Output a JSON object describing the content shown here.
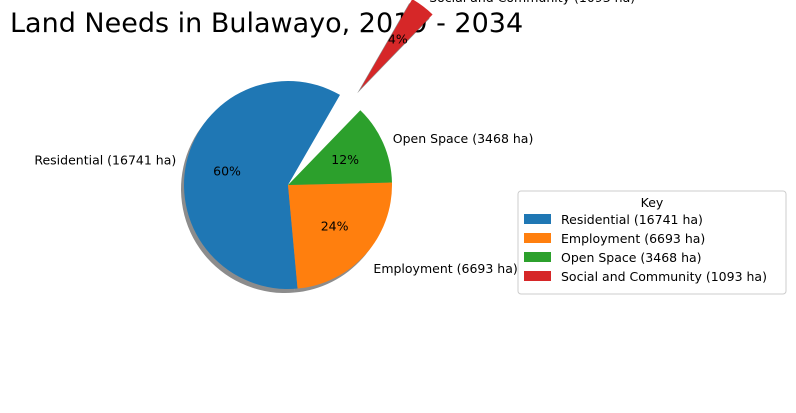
{
  "chart_data": {
    "type": "pie",
    "title": "Land Needs in Bulawayo, 2019 - 2034",
    "categories": [
      "Residential (16741 ha)",
      "Employment (6693 ha)",
      "Open Space (3468 ha)",
      "Social and Community (1093 ha)"
    ],
    "values": [
      16741,
      6693,
      3468,
      1093
    ],
    "percent_labels": [
      "60%",
      "24%",
      "12%",
      "4%"
    ],
    "colors": [
      "#1f77b4",
      "#ff7f0e",
      "#2ca02c",
      "#d62728"
    ],
    "exploded": [
      false,
      false,
      false,
      true
    ],
    "shadow": true,
    "legend": {
      "title": "Key",
      "placement": "center-right",
      "entries": [
        "Residential (16741 ha)",
        "Employment (6693 ha)",
        "Open Space (3468 ha)",
        "Social and Community (1093 ha)"
      ]
    }
  }
}
